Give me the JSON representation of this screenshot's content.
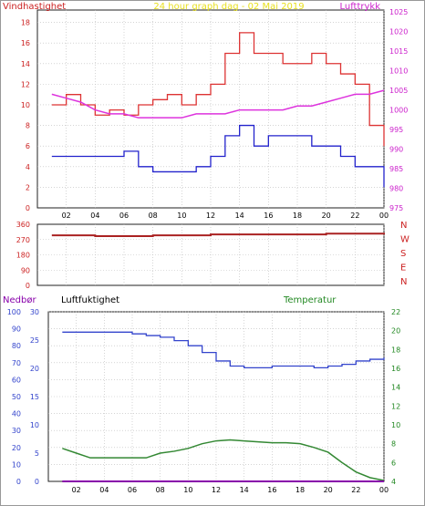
{
  "chart_data": [
    {
      "type": "line",
      "title": "24 hour graph dag - 02 Mai 2019",
      "ylabel_left": "Vindhastighet",
      "ylabel_right": "Lufttrykk",
      "x_ticks": [
        "02",
        "04",
        "06",
        "08",
        "10",
        "12",
        "14",
        "16",
        "18",
        "20",
        "22",
        "00"
      ],
      "y_left_ticks": [
        "0",
        "2",
        "4",
        "6",
        "8",
        "10",
        "12",
        "14",
        "16",
        "18"
      ],
      "y_right_ticks": [
        "975",
        "980",
        "985",
        "990",
        "995",
        "1000",
        "1005",
        "1010",
        "1015",
        "1020",
        "1025"
      ],
      "ylim_left": [
        0,
        19.2
      ],
      "ylim_right": [
        975,
        1025.5
      ],
      "grid": true,
      "colors": {
        "gust": "#dd3333",
        "mean": "#2222cc",
        "pressure": "#dd33dd"
      },
      "x_hours": [
        1,
        2,
        3,
        4,
        5,
        6,
        7,
        8,
        9,
        10,
        11,
        12,
        13,
        14,
        15,
        16,
        17,
        18,
        19,
        20,
        21,
        22,
        23,
        24
      ],
      "gust": [
        10,
        11,
        10,
        9,
        9.5,
        9,
        10,
        10.5,
        11,
        10,
        11,
        12,
        15,
        17,
        15,
        15,
        14,
        14,
        15,
        14,
        13,
        12,
        8,
        6
      ],
      "mean": [
        5,
        5,
        5,
        5,
        5,
        5.5,
        4,
        3.5,
        3.5,
        3.5,
        4,
        5,
        7,
        8,
        6,
        7,
        7,
        7,
        6,
        6,
        5,
        4,
        4,
        2
      ],
      "pressure": [
        1004,
        1003,
        1002,
        1000,
        999,
        999,
        998,
        998,
        998,
        998,
        999,
        999,
        999,
        1000,
        1000,
        1000,
        1000,
        1001,
        1001,
        1002,
        1003,
        1004,
        1004,
        1005
      ]
    },
    {
      "type": "line",
      "y_ticks": [
        "0",
        "90",
        "180",
        "270",
        "360"
      ],
      "compass": [
        "N",
        "W",
        "S",
        "E",
        "N"
      ],
      "ylim": [
        0,
        360
      ],
      "grid": true,
      "colors": {
        "direction": "#aa2222"
      },
      "x_hours": [
        1,
        4,
        8,
        12,
        16,
        20,
        24
      ],
      "direction": [
        295,
        290,
        295,
        300,
        300,
        305,
        310
      ]
    },
    {
      "type": "line",
      "labels": {
        "precip": "Nedbør",
        "humidity": "Luftfuktighet",
        "temperature": "Temperatur"
      },
      "x_ticks": [
        "02",
        "04",
        "06",
        "08",
        "10",
        "12",
        "14",
        "16",
        "18",
        "20",
        "22",
        "00"
      ],
      "y_left_ticks": [
        "0",
        "10",
        "20",
        "30",
        "40",
        "50",
        "60",
        "70",
        "80",
        "90",
        "100"
      ],
      "y_mid_ticks": [
        "0",
        "5",
        "10",
        "15",
        "20",
        "25",
        "30"
      ],
      "y_right_ticks": [
        "4",
        "6",
        "8",
        "10",
        "12",
        "14",
        "16",
        "18",
        "20",
        "22"
      ],
      "ylim_left": [
        0,
        100
      ],
      "ylim_mid": [
        0,
        30
      ],
      "ylim_right": [
        4,
        22
      ],
      "grid": true,
      "colors": {
        "precip": "#8800aa",
        "humidity": "#3344cc",
        "temperature": "#338833"
      },
      "x_hours": [
        1,
        2,
        3,
        4,
        5,
        6,
        7,
        8,
        9,
        10,
        11,
        12,
        13,
        14,
        15,
        16,
        17,
        18,
        19,
        20,
        21,
        22,
        23,
        24
      ],
      "humidity": [
        88,
        88,
        88,
        88,
        88,
        87,
        86,
        85,
        83,
        80,
        76,
        71,
        68,
        67,
        67,
        68,
        68,
        68,
        67,
        68,
        69,
        71,
        72,
        73
      ],
      "temperature": [
        7.5,
        7,
        6.5,
        6.5,
        6.5,
        6.5,
        6.5,
        7,
        7.2,
        7.5,
        8,
        8.3,
        8.4,
        8.3,
        8.2,
        8.1,
        8.1,
        8,
        7.6,
        7.1,
        6,
        5,
        4.4,
        4.1
      ],
      "precipitation": [
        0,
        0,
        0,
        0,
        0,
        0,
        0,
        0,
        0,
        0,
        0,
        0,
        0,
        0,
        0,
        0,
        0,
        0,
        0,
        0,
        0,
        0,
        0,
        0
      ]
    }
  ]
}
